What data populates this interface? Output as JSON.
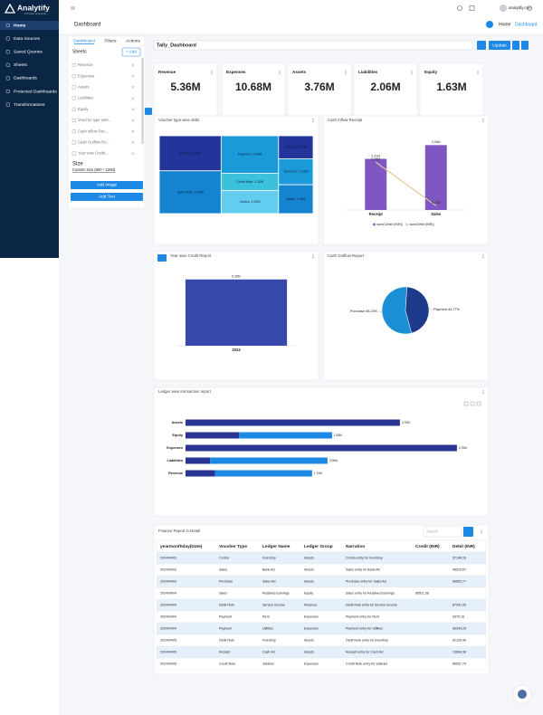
{
  "sidebar": {
    "brand": "Analytify",
    "tagline": "A Product of Analytify",
    "menu": [
      "Home",
      "Data Sources",
      "Saved Queries",
      "Sheets",
      "Dashboards",
      "Protected Dashboards",
      "Transformations"
    ]
  },
  "topbar": {
    "title": "Dashboard",
    "user": "analytify.com",
    "breadcrumb": [
      "Home",
      "Dashboard"
    ]
  },
  "panel": {
    "tabs": [
      "Dashboard",
      "Filters",
      "Actions"
    ],
    "sheets_label": "Sheets",
    "add": "+ Add",
    "sheets": [
      "Revenue",
      "Expenses",
      "Assets",
      "Liabilities",
      "Equity",
      "Voucher type wise...",
      "Cash inflow Rec...",
      "Cash Outflow Re...",
      "Year wise Credit..."
    ],
    "size_label": "Size",
    "size_value": "Custom size (800 * 2260)",
    "buttons": [
      "Add Image",
      "Add Text"
    ]
  },
  "dashboard": {
    "name": "Tally_Dashboard",
    "update": "Update"
  },
  "kpis": [
    {
      "label": "Revenue",
      "value": "5.36M"
    },
    {
      "label": "Expenses",
      "value": "10.68M"
    },
    {
      "label": "Assets",
      "value": "3.76M"
    },
    {
      "label": "Liabilities",
      "value": "2.06M"
    },
    {
      "label": "Equity",
      "value": "1.63M"
    }
  ],
  "chart_data": [
    {
      "type": "treemap",
      "title": "Voucher type wise debit",
      "values": [
        2.46,
        3.0,
        2.44,
        1.12,
        1.51,
        0.9,
        1.02,
        1.13
      ],
      "value_labels": [
        "Receipt: 2.46M",
        "Debit Note: 3.00M",
        "Payment: 2.44M",
        "Credit Note: 1.12M",
        "Contra: 1.51M",
        "Journal: 0.90M",
        "Journal C: 1.02M",
        "Sales: 1.13M"
      ],
      "colors": [
        "#23349a",
        "#1484d0",
        "#1a9ad9",
        "#3cc1dc",
        "#63cdf0",
        "#23349a",
        "#1a9ad9",
        "#1484d0"
      ]
    },
    {
      "type": "bar",
      "title": "Cash Inflow Receipt",
      "categories": [
        "Receipt",
        "Sales"
      ],
      "ylim": [
        0,
        3.5
      ],
      "series": [
        {
          "name": "sum(Credit (INR))",
          "color": "#7e57c2",
          "values": [
            2.41,
            3.06
          ],
          "value_labels": [
            "2.41M",
            "3.06M"
          ]
        },
        {
          "name": "sum(Debit (INR))",
          "color": "#e6c59c",
          "type": "line",
          "values": [
            2.25,
            0.2
          ],
          "value_labels": [
            "2.25M",
            "0.20M"
          ]
        }
      ]
    },
    {
      "type": "bar",
      "title": "Year wise Credit Report",
      "categories": [
        "2024"
      ],
      "ylim": [
        0,
        6
      ],
      "series": [
        {
          "color": "#3949ab",
          "values": [
            5.36
          ],
          "value_labels": [
            "5.36M"
          ]
        }
      ]
    },
    {
      "type": "pie",
      "title": "Cash Outflow Report",
      "categories": [
        "Purchase",
        "Payment"
      ],
      "values": [
        55.23,
        44.77
      ],
      "value_labels": [
        "55.23%",
        "44.77%"
      ],
      "colors": [
        "#1a8fd6",
        "#1e3a8a"
      ]
    },
    {
      "type": "hbar",
      "title": "Ledger wise transaction report",
      "categories": [
        "Assets",
        "Equity",
        "Expenses",
        "Liabilities",
        "Revenue"
      ],
      "xlim": [
        0,
        5
      ],
      "series": [
        {
          "color": "#283593",
          "values": [
            3.76,
            0.94,
            4.76,
            0.43,
            0.52
          ],
          "value_labels": [
            "3.76M",
            "0.94M",
            "4.76M",
            "0.43M",
            "0.52M"
          ]
        },
        {
          "color": "#1e88e5",
          "values": [
            null,
            1.63,
            null,
            2.06,
            1.7
          ],
          "value_labels": [
            null,
            "1.63M",
            null,
            "2.06M",
            "1.70M"
          ]
        }
      ]
    }
  ],
  "table": {
    "title": "Finance Report in Detail",
    "search": "Search",
    "columns": [
      "yearmonthday(Date)",
      "Voucher Type",
      "Ledger Name",
      "Ledger Group",
      "Narration",
      "Credit (INR)",
      "Debit (INR)"
    ],
    "rows": [
      [
        "2024/04/03",
        "Contra",
        "Inventory",
        "Assets",
        "Contra entry for Inventory",
        null,
        "57148.16"
      ],
      [
        "2024/04/03",
        "Sales",
        "Bank A/c",
        "Assets",
        "Sales entry for Bank A/c",
        null,
        "46515.67"
      ],
      [
        "2024/04/03",
        "Purchase",
        "Sales A/c",
        "Assets",
        "Purchase entry for Sales A/c",
        null,
        "99653.77"
      ],
      [
        "2024/04/04",
        "Sales",
        "Retained Earnings",
        "Equity",
        "Sales entry for Retained Earnings",
        "85911.56",
        null
      ],
      [
        "2024/04/04",
        "Debit Note",
        "Service Income",
        "Revenue",
        "Debit Note entry for Service Income",
        null,
        "87341.53"
      ],
      [
        "2024/04/04",
        "Payment",
        "Rent",
        "Expenses",
        "Payment entry for Rent",
        null,
        "9375.16"
      ],
      [
        "2024/04/04",
        "Payment",
        "Utilities",
        "Expenses",
        "Payment entry for Utilities",
        null,
        "96343.29"
      ],
      [
        "2024/04/05",
        "Debit Note",
        "Inventory",
        "Assets",
        "Debit Note entry for Inventory",
        null,
        "62126.49"
      ],
      [
        "2024/04/05",
        "Receipt",
        "Cash A/c",
        "Assets",
        "Receipt entry for Cash A/c",
        null,
        "13698.38"
      ],
      [
        "2024/04/05",
        "Credit Note",
        "Salaries",
        "Expenses",
        "Credit Note entry for Salaries",
        null,
        "86537.79"
      ]
    ]
  }
}
